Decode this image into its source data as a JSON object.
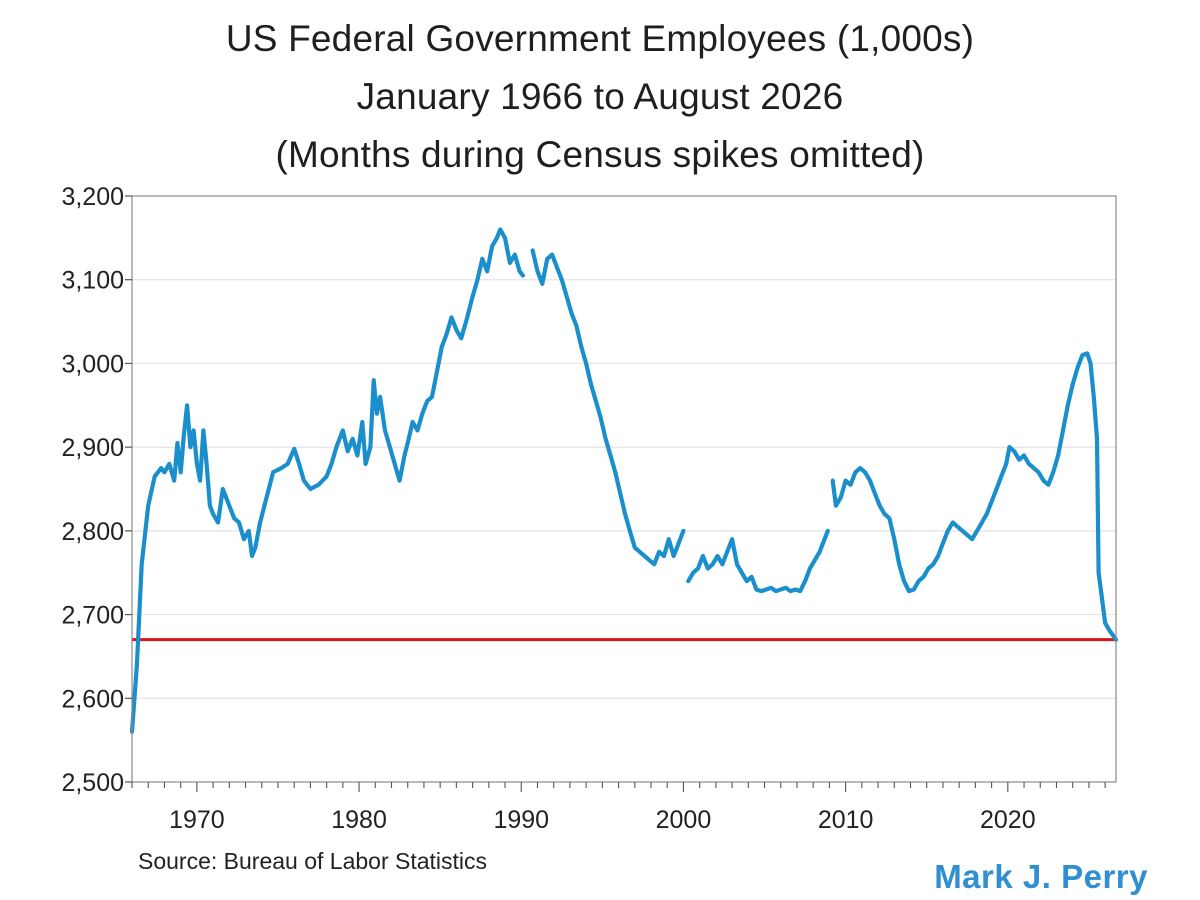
{
  "chart_data": {
    "type": "line",
    "title": "US Federal Government Employees (1,000s)",
    "subtitle": "January 1966 to August 2026",
    "subtitle2": "(Months during Census spikes omitted)",
    "xlabel": "",
    "ylabel": "",
    "xlim": [
      1966.0,
      2026.67
    ],
    "ylim": [
      2500,
      3200
    ],
    "x_ticks": [
      1970,
      1980,
      1990,
      2000,
      2010,
      2020
    ],
    "x_tick_labels": [
      "1970",
      "1980",
      "1990",
      "2000",
      "2010",
      "2020"
    ],
    "y_ticks": [
      2500,
      2600,
      2700,
      2800,
      2900,
      3000,
      3100,
      3200
    ],
    "y_tick_labels": [
      "2,500",
      "2,600",
      "2,700",
      "2,800",
      "2,900",
      "3,000",
      "3,100",
      "3,200"
    ],
    "grid": "horizontal",
    "series": [
      {
        "color": "#1b8fcb",
        "segments": [
          [
            [
              1966.0,
              2560
            ],
            [
              1966.3,
              2640
            ],
            [
              1966.6,
              2760
            ],
            [
              1967.0,
              2830
            ],
            [
              1967.4,
              2865
            ],
            [
              1967.8,
              2875
            ],
            [
              1968.0,
              2870
            ],
            [
              1968.3,
              2880
            ],
            [
              1968.6,
              2860
            ],
            [
              1968.8,
              2905
            ],
            [
              1969.0,
              2870
            ],
            [
              1969.2,
              2915
            ],
            [
              1969.4,
              2950
            ],
            [
              1969.6,
              2900
            ],
            [
              1969.8,
              2920
            ],
            [
              1970.0,
              2880
            ],
            [
              1970.2,
              2860
            ],
            [
              1970.4,
              2920
            ],
            [
              1970.6,
              2880
            ],
            [
              1970.8,
              2830
            ],
            [
              1971.0,
              2820
            ],
            [
              1971.3,
              2810
            ],
            [
              1971.6,
              2850
            ],
            [
              1972.0,
              2830
            ],
            [
              1972.3,
              2815
            ],
            [
              1972.6,
              2810
            ],
            [
              1972.9,
              2790
            ],
            [
              1973.2,
              2800
            ],
            [
              1973.4,
              2770
            ],
            [
              1973.6,
              2780
            ],
            [
              1973.9,
              2810
            ],
            [
              1974.3,
              2840
            ],
            [
              1974.7,
              2870
            ],
            [
              1975.2,
              2875
            ],
            [
              1975.6,
              2880
            ],
            [
              1976.0,
              2898
            ],
            [
              1976.3,
              2880
            ],
            [
              1976.6,
              2860
            ],
            [
              1977.0,
              2850
            ],
            [
              1977.5,
              2855
            ],
            [
              1978.0,
              2865
            ],
            [
              1978.3,
              2880
            ],
            [
              1978.6,
              2900
            ],
            [
              1979.0,
              2920
            ],
            [
              1979.3,
              2895
            ],
            [
              1979.6,
              2910
            ],
            [
              1979.9,
              2890
            ],
            [
              1980.2,
              2930
            ],
            [
              1980.4,
              2880
            ],
            [
              1980.7,
              2900
            ],
            [
              1980.9,
              2980
            ],
            [
              1981.1,
              2940
            ],
            [
              1981.3,
              2960
            ],
            [
              1981.6,
              2920
            ],
            [
              1981.9,
              2900
            ],
            [
              1982.2,
              2880
            ],
            [
              1982.5,
              2860
            ],
            [
              1982.8,
              2890
            ],
            [
              1983.0,
              2905
            ],
            [
              1983.3,
              2930
            ],
            [
              1983.6,
              2920
            ],
            [
              1983.9,
              2940
            ],
            [
              1984.2,
              2955
            ],
            [
              1984.5,
              2960
            ],
            [
              1984.8,
              2990
            ],
            [
              1985.1,
              3020
            ],
            [
              1985.4,
              3035
            ],
            [
              1985.7,
              3055
            ],
            [
              1986.0,
              3040
            ],
            [
              1986.3,
              3030
            ],
            [
              1986.6,
              3050
            ],
            [
              1987.0,
              3080
            ],
            [
              1987.3,
              3100
            ],
            [
              1987.6,
              3125
            ],
            [
              1987.9,
              3110
            ],
            [
              1988.2,
              3140
            ],
            [
              1988.5,
              3150
            ],
            [
              1988.7,
              3160
            ],
            [
              1989.0,
              3150
            ],
            [
              1989.3,
              3120
            ],
            [
              1989.6,
              3130
            ],
            [
              1989.9,
              3110
            ],
            [
              1990.1,
              3105
            ]
          ],
          [
            [
              1990.7,
              3135
            ],
            [
              1991.0,
              3110
            ],
            [
              1991.3,
              3095
            ],
            [
              1991.6,
              3125
            ],
            [
              1991.9,
              3130
            ],
            [
              1992.2,
              3115
            ],
            [
              1992.5,
              3100
            ],
            [
              1992.8,
              3080
            ],
            [
              1993.1,
              3060
            ],
            [
              1993.4,
              3045
            ],
            [
              1993.7,
              3020
            ],
            [
              1994.0,
              3000
            ],
            [
              1994.3,
              2975
            ],
            [
              1994.6,
              2955
            ],
            [
              1994.9,
              2935
            ],
            [
              1995.2,
              2910
            ],
            [
              1995.5,
              2890
            ],
            [
              1995.8,
              2870
            ],
            [
              1996.1,
              2845
            ],
            [
              1996.4,
              2820
            ],
            [
              1996.7,
              2800
            ],
            [
              1997.0,
              2780
            ],
            [
              1997.3,
              2775
            ],
            [
              1997.6,
              2770
            ],
            [
              1997.9,
              2765
            ],
            [
              1998.2,
              2760
            ],
            [
              1998.5,
              2775
            ],
            [
              1998.8,
              2770
            ],
            [
              1999.1,
              2790
            ],
            [
              1999.4,
              2770
            ],
            [
              1999.7,
              2785
            ],
            [
              2000.0,
              2800
            ]
          ],
          [
            [
              2000.3,
              2740
            ],
            [
              2000.6,
              2750
            ],
            [
              2000.9,
              2755
            ],
            [
              2001.2,
              2770
            ],
            [
              2001.5,
              2755
            ],
            [
              2001.8,
              2760
            ],
            [
              2002.1,
              2770
            ],
            [
              2002.4,
              2760
            ],
            [
              2002.7,
              2775
            ],
            [
              2003.0,
              2790
            ],
            [
              2003.3,
              2760
            ],
            [
              2003.6,
              2750
            ],
            [
              2003.9,
              2740
            ],
            [
              2004.2,
              2745
            ],
            [
              2004.5,
              2730
            ],
            [
              2004.8,
              2728
            ],
            [
              2005.1,
              2730
            ],
            [
              2005.4,
              2732
            ],
            [
              2005.7,
              2728
            ],
            [
              2006.0,
              2730
            ],
            [
              2006.3,
              2732
            ],
            [
              2006.6,
              2728
            ],
            [
              2006.9,
              2730
            ],
            [
              2007.2,
              2728
            ],
            [
              2007.5,
              2740
            ],
            [
              2007.8,
              2755
            ],
            [
              2008.1,
              2765
            ],
            [
              2008.4,
              2775
            ],
            [
              2008.7,
              2790
            ],
            [
              2008.9,
              2800
            ]
          ],
          [
            [
              2009.2,
              2860
            ],
            [
              2009.4,
              2830
            ],
            [
              2009.7,
              2840
            ],
            [
              2010.0,
              2860
            ],
            [
              2010.3,
              2855
            ],
            [
              2010.6,
              2870
            ],
            [
              2010.9,
              2875
            ],
            [
              2011.2,
              2870
            ],
            [
              2011.5,
              2860
            ],
            [
              2011.8,
              2845
            ],
            [
              2012.1,
              2830
            ],
            [
              2012.4,
              2820
            ],
            [
              2012.7,
              2815
            ],
            [
              2013.0,
              2790
            ],
            [
              2013.3,
              2760
            ],
            [
              2013.6,
              2740
            ],
            [
              2013.9,
              2728
            ],
            [
              2014.2,
              2730
            ],
            [
              2014.5,
              2740
            ],
            [
              2014.8,
              2745
            ],
            [
              2015.1,
              2755
            ],
            [
              2015.4,
              2760
            ],
            [
              2015.7,
              2770
            ],
            [
              2016.0,
              2785
            ],
            [
              2016.3,
              2800
            ],
            [
              2016.6,
              2810
            ],
            [
              2016.9,
              2805
            ],
            [
              2017.2,
              2800
            ],
            [
              2017.5,
              2795
            ],
            [
              2017.8,
              2790
            ],
            [
              2018.1,
              2800
            ],
            [
              2018.4,
              2810
            ],
            [
              2018.7,
              2820
            ],
            [
              2019.0,
              2835
            ],
            [
              2019.3,
              2850
            ],
            [
              2019.6,
              2865
            ],
            [
              2019.9,
              2880
            ],
            [
              2020.1,
              2900
            ],
            [
              2020.4,
              2895
            ],
            [
              2020.7,
              2885
            ],
            [
              2021.0,
              2890
            ],
            [
              2021.3,
              2880
            ],
            [
              2021.6,
              2875
            ],
            [
              2021.9,
              2870
            ],
            [
              2022.2,
              2860
            ],
            [
              2022.5,
              2855
            ],
            [
              2022.8,
              2870
            ],
            [
              2023.1,
              2890
            ],
            [
              2023.4,
              2920
            ],
            [
              2023.7,
              2950
            ],
            [
              2024.0,
              2975
            ],
            [
              2024.3,
              2995
            ],
            [
              2024.6,
              3010
            ],
            [
              2024.9,
              3012
            ],
            [
              2025.1,
              3000
            ],
            [
              2025.3,
              2960
            ],
            [
              2025.5,
              2910
            ],
            [
              2025.6,
              2750
            ],
            [
              2025.8,
              2720
            ],
            [
              2026.0,
              2690
            ],
            [
              2026.3,
              2680
            ],
            [
              2026.5,
              2675
            ],
            [
              2026.67,
              2670
            ]
          ]
        ]
      }
    ],
    "reference_lines": [
      {
        "type": "horizontal",
        "y": 2670,
        "color": "#d8141b"
      }
    ]
  },
  "footer": {
    "source": "Source: Bureau of Labor Statistics",
    "author": "Mark J. Perry"
  }
}
